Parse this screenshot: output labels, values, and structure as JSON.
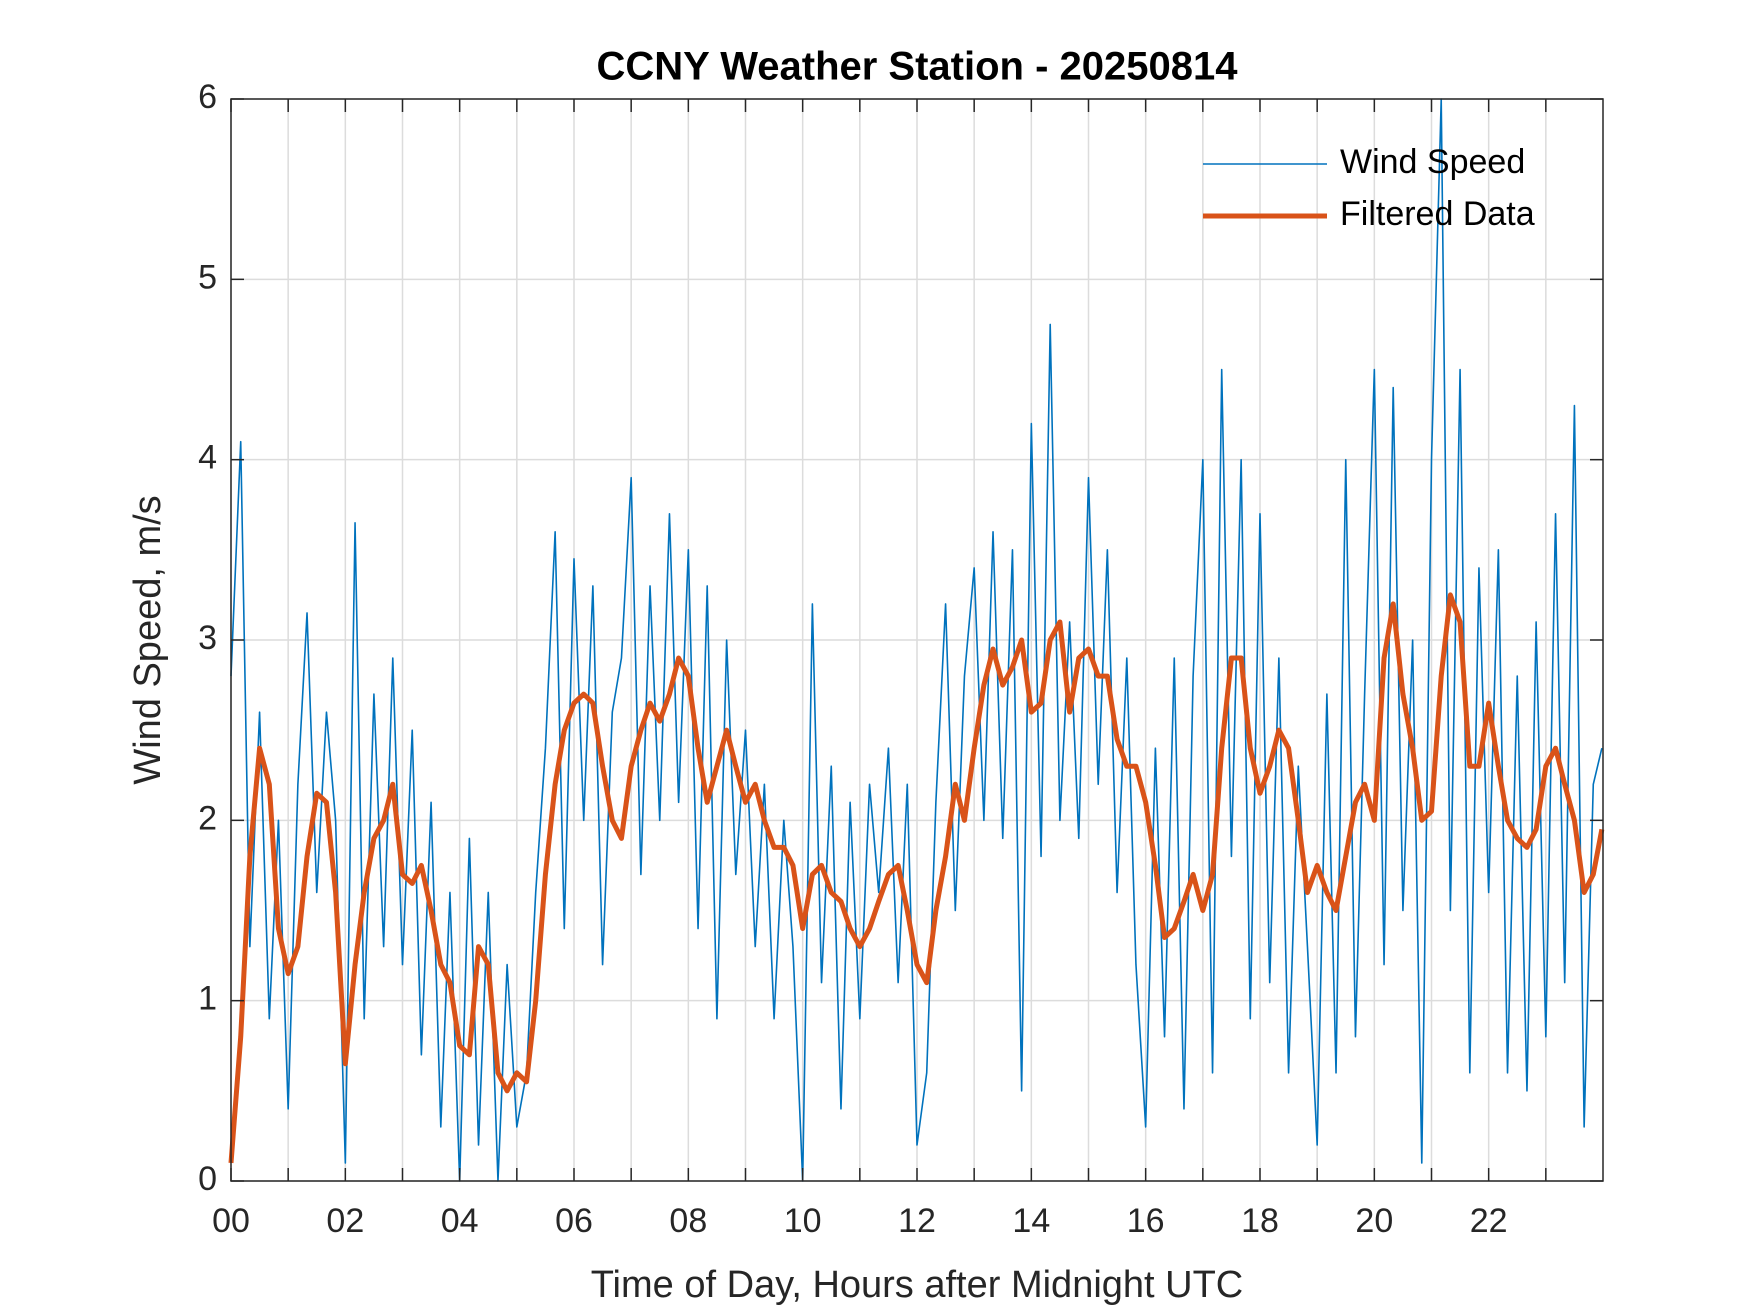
{
  "chart_data": {
    "type": "line",
    "title": "CCNY Weather Station - 20250814",
    "xlabel": "Time of Day, Hours after Midnight UTC",
    "ylabel": "Wind Speed, m/s",
    "xlim": [
      0,
      24
    ],
    "ylim": [
      0,
      6
    ],
    "xticks": [
      {
        "value": 0,
        "label": "00"
      },
      {
        "value": 2,
        "label": "02"
      },
      {
        "value": 4,
        "label": "04"
      },
      {
        "value": 6,
        "label": "06"
      },
      {
        "value": 8,
        "label": "08"
      },
      {
        "value": 10,
        "label": "10"
      },
      {
        "value": 12,
        "label": "12"
      },
      {
        "value": 14,
        "label": "14"
      },
      {
        "value": 16,
        "label": "16"
      },
      {
        "value": 18,
        "label": "18"
      },
      {
        "value": 20,
        "label": "20"
      },
      {
        "value": 22,
        "label": "22"
      }
    ],
    "xminorticks": [
      1,
      3,
      5,
      7,
      9,
      11,
      13,
      15,
      17,
      19,
      21,
      23
    ],
    "yticks": [
      0,
      1,
      2,
      3,
      4,
      5,
      6
    ],
    "grid": true,
    "legend": "upper right",
    "x": [
      0,
      0.17,
      0.33,
      0.5,
      0.67,
      0.83,
      1,
      1.17,
      1.33,
      1.5,
      1.67,
      1.83,
      2,
      2.17,
      2.33,
      2.5,
      2.67,
      2.83,
      3,
      3.17,
      3.33,
      3.5,
      3.67,
      3.83,
      4,
      4.17,
      4.33,
      4.5,
      4.67,
      4.83,
      5,
      5.17,
      5.33,
      5.5,
      5.67,
      5.83,
      6,
      6.17,
      6.33,
      6.5,
      6.67,
      6.83,
      7,
      7.17,
      7.33,
      7.5,
      7.67,
      7.83,
      8,
      8.17,
      8.33,
      8.5,
      8.67,
      8.83,
      9,
      9.17,
      9.33,
      9.5,
      9.67,
      9.83,
      10,
      10.17,
      10.33,
      10.5,
      10.67,
      10.83,
      11,
      11.17,
      11.33,
      11.5,
      11.67,
      11.83,
      12,
      12.17,
      12.33,
      12.5,
      12.67,
      12.83,
      13,
      13.17,
      13.33,
      13.5,
      13.67,
      13.83,
      14,
      14.17,
      14.33,
      14.5,
      14.67,
      14.83,
      15,
      15.17,
      15.33,
      15.5,
      15.67,
      15.83,
      16,
      16.17,
      16.33,
      16.5,
      16.67,
      16.83,
      17,
      17.17,
      17.33,
      17.5,
      17.67,
      17.83,
      18,
      18.17,
      18.33,
      18.5,
      18.67,
      18.83,
      19,
      19.17,
      19.33,
      19.5,
      19.67,
      19.83,
      20,
      20.17,
      20.33,
      20.5,
      20.67,
      20.83,
      21,
      21.17,
      21.33,
      21.5,
      21.67,
      21.83,
      22,
      22.17,
      22.33,
      22.5,
      22.67,
      22.83,
      23,
      23.17,
      23.33,
      23.5,
      23.67,
      23.83,
      23.98
    ],
    "series": [
      {
        "name": "Wind Speed",
        "color": "#0072BD",
        "width": 1.6,
        "values": [
          2.8,
          4.1,
          1.3,
          2.6,
          0.9,
          2.0,
          0.4,
          2.2,
          3.15,
          1.6,
          2.6,
          2.0,
          0.1,
          3.65,
          0.9,
          2.7,
          1.3,
          2.9,
          1.2,
          2.5,
          0.7,
          2.1,
          0.3,
          1.6,
          0.0,
          1.9,
          0.2,
          1.6,
          0.0,
          1.2,
          0.3,
          0.6,
          1.6,
          2.4,
          3.6,
          1.4,
          3.45,
          2.0,
          3.3,
          1.2,
          2.6,
          2.9,
          3.9,
          1.7,
          3.3,
          2.0,
          3.7,
          2.1,
          3.5,
          1.4,
          3.3,
          0.9,
          3.0,
          1.7,
          2.5,
          1.3,
          2.2,
          0.9,
          2.0,
          1.3,
          0.0,
          3.2,
          1.1,
          2.3,
          0.4,
          2.1,
          0.9,
          2.2,
          1.6,
          2.4,
          1.1,
          2.2,
          0.2,
          0.6,
          2.1,
          3.2,
          1.5,
          2.8,
          3.4,
          2.0,
          3.6,
          1.9,
          3.5,
          0.5,
          4.2,
          1.8,
          4.75,
          2.0,
          3.1,
          1.9,
          3.9,
          2.2,
          3.5,
          1.6,
          2.9,
          1.2,
          0.3,
          2.4,
          0.8,
          2.9,
          0.4,
          2.8,
          4.0,
          0.6,
          4.5,
          1.8,
          4.0,
          0.9,
          3.7,
          1.1,
          2.9,
          0.6,
          2.3,
          1.3,
          0.2,
          2.7,
          0.6,
          4.0,
          0.8,
          2.7,
          4.5,
          1.2,
          4.4,
          1.5,
          3.0,
          0.1,
          4.0,
          6.0,
          1.5,
          4.5,
          0.6,
          3.4,
          1.6,
          3.5,
          0.6,
          2.8,
          0.5,
          3.1,
          0.8,
          3.7,
          1.1,
          4.3,
          0.3,
          2.2,
          2.4
        ]
      },
      {
        "name": "Filtered Data",
        "color": "#D95319",
        "width": 5,
        "values": [
          0.1,
          0.8,
          1.8,
          2.4,
          2.2,
          1.4,
          1.15,
          1.3,
          1.8,
          2.15,
          2.1,
          1.6,
          0.65,
          1.2,
          1.6,
          1.9,
          2.0,
          2.2,
          1.7,
          1.65,
          1.75,
          1.5,
          1.2,
          1.1,
          0.75,
          0.7,
          1.3,
          1.2,
          0.6,
          0.5,
          0.6,
          0.55,
          1.0,
          1.7,
          2.2,
          2.5,
          2.65,
          2.7,
          2.65,
          2.3,
          2.0,
          1.9,
          2.3,
          2.5,
          2.65,
          2.55,
          2.7,
          2.9,
          2.8,
          2.4,
          2.1,
          2.3,
          2.5,
          2.3,
          2.1,
          2.2,
          2.0,
          1.85,
          1.85,
          1.75,
          1.4,
          1.7,
          1.75,
          1.6,
          1.55,
          1.4,
          1.3,
          1.4,
          1.55,
          1.7,
          1.75,
          1.5,
          1.2,
          1.1,
          1.5,
          1.8,
          2.2,
          2.0,
          2.4,
          2.75,
          2.95,
          2.75,
          2.85,
          3.0,
          2.6,
          2.65,
          3.0,
          3.1,
          2.6,
          2.9,
          2.95,
          2.8,
          2.8,
          2.45,
          2.3,
          2.3,
          2.1,
          1.75,
          1.35,
          1.4,
          1.55,
          1.7,
          1.5,
          1.7,
          2.4,
          2.9,
          2.9,
          2.4,
          2.15,
          2.3,
          2.5,
          2.4,
          2.0,
          1.6,
          1.75,
          1.6,
          1.5,
          1.8,
          2.1,
          2.2,
          2.0,
          2.9,
          3.2,
          2.7,
          2.4,
          2.0,
          2.05,
          2.8,
          3.25,
          3.1,
          2.3,
          2.3,
          2.65,
          2.3,
          2.0,
          1.9,
          1.85,
          1.95,
          2.3,
          2.4,
          2.2,
          2.0,
          1.6,
          1.7,
          1.95
        ]
      }
    ]
  }
}
